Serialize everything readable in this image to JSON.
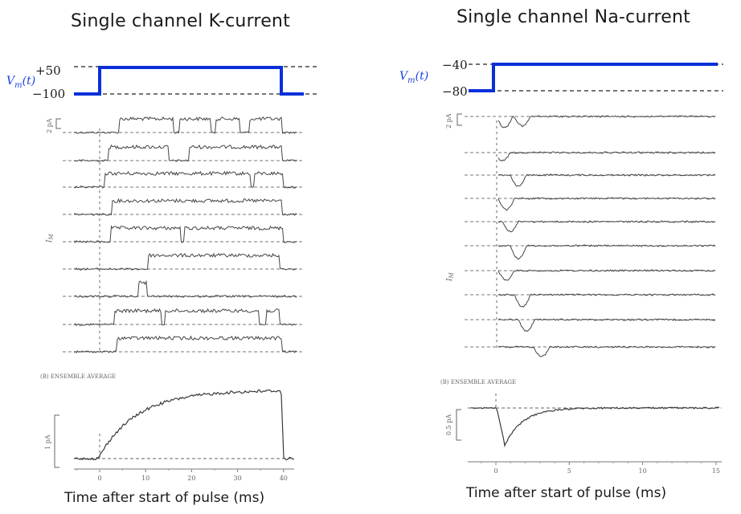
{
  "left": {
    "title": "Single channel K-current",
    "vm_label": "V_m(t)",
    "vm_high": "+50",
    "vm_low": "−100",
    "scale_top": "2 pA",
    "axis_label": "I_M",
    "ensemble_label": "(B) ENSEMBLE AVERAGE",
    "scale_bottom": "1 pA",
    "ticks": [
      "0",
      "10",
      "20",
      "30",
      "40"
    ],
    "xlabel": "Time after start of pulse (ms)"
  },
  "right": {
    "title": "Single channel Na-current",
    "vm_label": "V_m(t)",
    "vm_high": "−40",
    "vm_low": "−80",
    "scale_top": "2 pA",
    "axis_label": "I_M",
    "ensemble_label": "(B) ENSEMBLE AVERAGE",
    "scale_bottom": "0.5 pA",
    "ticks": [
      "0",
      "5",
      "10",
      "15"
    ],
    "xlabel": "Time after start of pulse (ms)"
  },
  "colors": {
    "pulse": "#0a2fd9",
    "trace": "#4a4a4a",
    "text": "#1a1a1a",
    "label_blue": "#1a3fe0"
  }
}
